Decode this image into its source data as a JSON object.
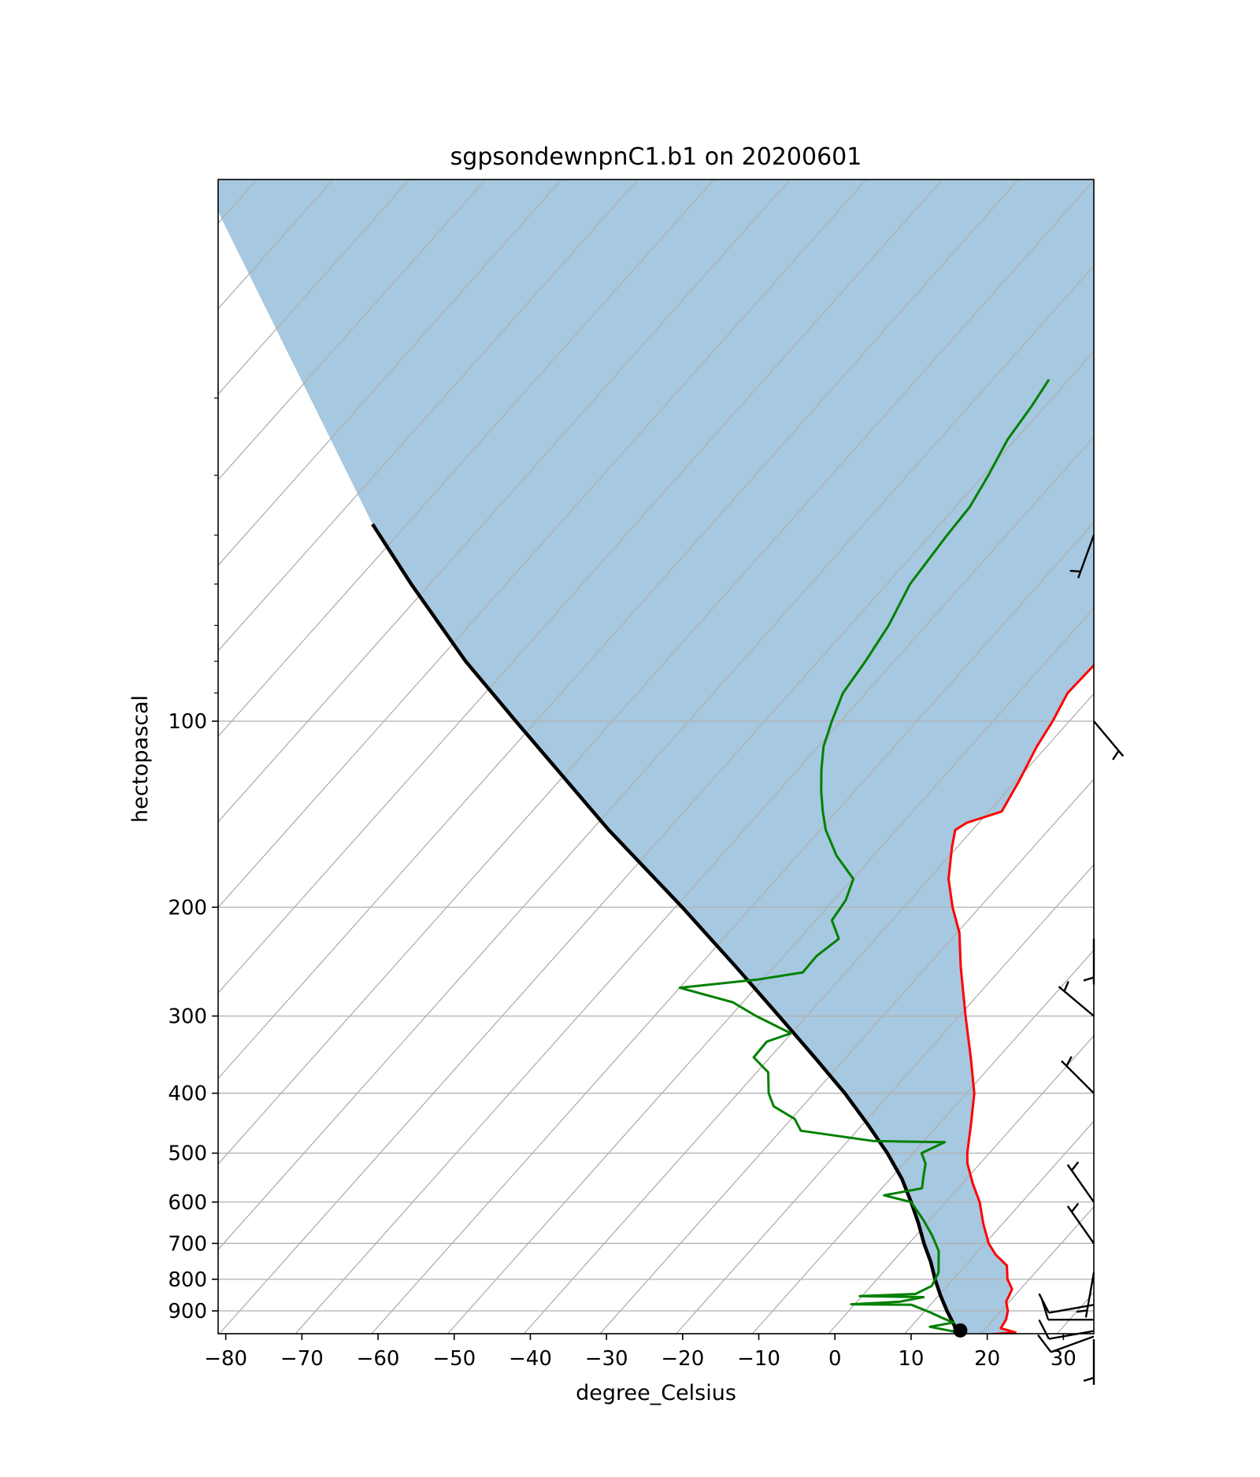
{
  "chart_data": {
    "type": "line",
    "subtype": "skew-t log-p sounding",
    "title": "sgpsondewnpnC1.b1 on 20200601",
    "xlabel": "degree_Celsius",
    "ylabel": "hectopascal",
    "xlim": [
      -81,
      34
    ],
    "ylim_hpa": [
      1002,
      28
    ],
    "y_scale": "log",
    "grid": true,
    "x_ticks": [
      -80,
      -70,
      -60,
      -50,
      -40,
      -30,
      -20,
      -10,
      0,
      10,
      20,
      30
    ],
    "x_tick_labels": [
      "−80",
      "−70",
      "−60",
      "−50",
      "−40",
      "−30",
      "−20",
      "−10",
      "0",
      "10",
      "20",
      "30"
    ],
    "y_ticks": [
      100,
      200,
      300,
      400,
      500,
      600,
      700,
      800,
      900
    ],
    "y_tick_labels": [
      "100",
      "200",
      "300",
      "400",
      "500",
      "600",
      "700",
      "800",
      "900"
    ],
    "colors": {
      "temperature": "#ff0000",
      "dewpoint": "#008000",
      "parcel": "#000000",
      "cape_fill": "#a6c8e0",
      "grid": "#b0b0b0",
      "isotherm": "#b0b0b0"
    },
    "series": [
      {
        "name": "temperature",
        "points": [
          {
            "p": 985,
            "t": 19.5
          },
          {
            "p": 975,
            "t": 23.5
          },
          {
            "p": 960,
            "t": 21.0
          },
          {
            "p": 930,
            "t": 20.5
          },
          {
            "p": 900,
            "t": 19.5
          },
          {
            "p": 870,
            "t": 18.0
          },
          {
            "p": 830,
            "t": 17.0
          },
          {
            "p": 800,
            "t": 15.0
          },
          {
            "p": 760,
            "t": 13.0
          },
          {
            "p": 730,
            "t": 10.0
          },
          {
            "p": 700,
            "t": 7.5
          },
          {
            "p": 650,
            "t": 4.0
          },
          {
            "p": 600,
            "t": 0.5
          },
          {
            "p": 560,
            "t": -3.0
          },
          {
            "p": 520,
            "t": -6.5
          },
          {
            "p": 500,
            "t": -8.0
          },
          {
            "p": 450,
            "t": -11.5
          },
          {
            "p": 400,
            "t": -15.5
          },
          {
            "p": 350,
            "t": -21.0
          },
          {
            "p": 300,
            "t": -27.5
          },
          {
            "p": 250,
            "t": -35.0
          },
          {
            "p": 220,
            "t": -40.0
          },
          {
            "p": 200,
            "t": -44.5
          },
          {
            "p": 180,
            "t": -49.0
          },
          {
            "p": 160,
            "t": -53.0
          },
          {
            "p": 150,
            "t": -55.0
          },
          {
            "p": 146,
            "t": -54.5
          },
          {
            "p": 140,
            "t": -51.5
          },
          {
            "p": 125,
            "t": -53.5
          },
          {
            "p": 110,
            "t": -56.0
          },
          {
            "p": 100,
            "t": -57.5
          },
          {
            "p": 90,
            "t": -59.5
          },
          {
            "p": 80,
            "t": -60.0
          },
          {
            "p": 70,
            "t": -62.0
          },
          {
            "p": 60,
            "t": -63.5
          },
          {
            "p": 50,
            "t": -64.5
          },
          {
            "p": 45,
            "t": -64.5
          },
          {
            "p": 40,
            "t": -64.0
          },
          {
            "p": 35,
            "t": -63.5
          },
          {
            "p": 31,
            "t": -61.5
          }
        ]
      },
      {
        "name": "dewpoint",
        "points": [
          {
            "p": 975,
            "t": 16.0
          },
          {
            "p": 955,
            "t": 11.5
          },
          {
            "p": 940,
            "t": 14.0
          },
          {
            "p": 925,
            "t": 12.0
          },
          {
            "p": 905,
            "t": 9.5
          },
          {
            "p": 880,
            "t": 6.0
          },
          {
            "p": 878,
            "t": -2.0
          },
          {
            "p": 870,
            "t": 4.0
          },
          {
            "p": 855,
            "t": 6.5
          },
          {
            "p": 852,
            "t": -2.0
          },
          {
            "p": 845,
            "t": 5.0
          },
          {
            "p": 820,
            "t": 6.0
          },
          {
            "p": 780,
            "t": 5.0
          },
          {
            "p": 720,
            "t": 2.0
          },
          {
            "p": 680,
            "t": -1.0
          },
          {
            "p": 640,
            "t": -4.5
          },
          {
            "p": 600,
            "t": -8.5
          },
          {
            "p": 585,
            "t": -13.0
          },
          {
            "p": 570,
            "t": -9.0
          },
          {
            "p": 545,
            "t": -10.5
          },
          {
            "p": 520,
            "t": -12.0
          },
          {
            "p": 500,
            "t": -14.0
          },
          {
            "p": 480,
            "t": -12.5
          },
          {
            "p": 478,
            "t": -22.0
          },
          {
            "p": 460,
            "t": -33.0
          },
          {
            "p": 440,
            "t": -35.5
          },
          {
            "p": 420,
            "t": -40.0
          },
          {
            "p": 400,
            "t": -42.5
          },
          {
            "p": 370,
            "t": -45.5
          },
          {
            "p": 350,
            "t": -49.5
          },
          {
            "p": 330,
            "t": -50.0
          },
          {
            "p": 320,
            "t": -48.0
          },
          {
            "p": 300,
            "t": -55.0
          },
          {
            "p": 285,
            "t": -60.0
          },
          {
            "p": 270,
            "t": -69.0
          },
          {
            "p": 262,
            "t": -60.0
          },
          {
            "p": 255,
            "t": -55.0
          },
          {
            "p": 240,
            "t": -55.5
          },
          {
            "p": 225,
            "t": -55.0
          },
          {
            "p": 210,
            "t": -58.5
          },
          {
            "p": 195,
            "t": -59.5
          },
          {
            "p": 180,
            "t": -61.5
          },
          {
            "p": 165,
            "t": -67.0
          },
          {
            "p": 150,
            "t": -72.0
          },
          {
            "p": 140,
            "t": -75.0
          },
          {
            "p": 130,
            "t": -78.0
          },
          {
            "p": 120,
            "t": -81.0
          },
          {
            "p": 110,
            "t": -84.0
          },
          {
            "p": 100,
            "t": -86.5
          },
          {
            "p": 90,
            "t": -89.0
          },
          {
            "p": 80,
            "t": -90.5
          },
          {
            "p": 70,
            "t": -92.5
          },
          {
            "p": 60,
            "t": -95.5
          },
          {
            "p": 50,
            "t": -97.5
          },
          {
            "p": 45,
            "t": -98.5
          },
          {
            "p": 40,
            "t": -100.5
          },
          {
            "p": 35,
            "t": -103.0
          },
          {
            "p": 31,
            "t": -104.5
          },
          {
            "p": 28,
            "t": -106.0
          }
        ]
      },
      {
        "name": "parcel",
        "points": [
          {
            "p": 1002,
            "t": 19.0
          },
          {
            "p": 980,
            "t": 16.0
          },
          {
            "p": 950,
            "t": 14.5
          },
          {
            "p": 900,
            "t": 11.5
          },
          {
            "p": 850,
            "t": 8.5
          },
          {
            "p": 800,
            "t": 5.5
          },
          {
            "p": 750,
            "t": 2.5
          },
          {
            "p": 700,
            "t": -1.0
          },
          {
            "p": 650,
            "t": -4.5
          },
          {
            "p": 600,
            "t": -8.5
          },
          {
            "p": 550,
            "t": -13.0
          },
          {
            "p": 500,
            "t": -18.5
          },
          {
            "p": 450,
            "t": -25.0
          },
          {
            "p": 400,
            "t": -32.5
          },
          {
            "p": 350,
            "t": -41.5
          },
          {
            "p": 300,
            "t": -52.0
          },
          {
            "p": 250,
            "t": -64.5
          },
          {
            "p": 200,
            "t": -80.0
          },
          {
            "p": 150,
            "t": -100.5
          },
          {
            "p": 100,
            "t": -128.0
          },
          {
            "p": 80,
            "t": -143.0
          },
          {
            "p": 60,
            "t": -161.0
          },
          {
            "p": 48,
            "t": -174.5
          }
        ]
      }
    ],
    "lcl_marker": {
      "p": 968,
      "t": 16.0
    },
    "wind_barbs": [
      {
        "p": 1000,
        "direction_deg": 180,
        "speed_kt": 5
      },
      {
        "p": 990,
        "direction_deg": 250,
        "speed_kt": 10
      },
      {
        "p": 970,
        "direction_deg": 260,
        "speed_kt": 10
      },
      {
        "p": 930,
        "direction_deg": 270,
        "speed_kt": 10
      },
      {
        "p": 880,
        "direction_deg": 260,
        "speed_kt": 10
      },
      {
        "p": 780,
        "direction_deg": 190,
        "speed_kt": 5
      },
      {
        "p": 700,
        "direction_deg": 325,
        "speed_kt": 5
      },
      {
        "p": 600,
        "direction_deg": 325,
        "speed_kt": 5
      },
      {
        "p": 400,
        "direction_deg": 315,
        "speed_kt": 5
      },
      {
        "p": 300,
        "direction_deg": 310,
        "speed_kt": 5
      },
      {
        "p": 225,
        "direction_deg": 180,
        "speed_kt": 5
      },
      {
        "p": 100,
        "direction_deg": 140,
        "speed_kt": 5
      },
      {
        "p": 50,
        "direction_deg": 200,
        "speed_kt": 5
      }
    ]
  }
}
